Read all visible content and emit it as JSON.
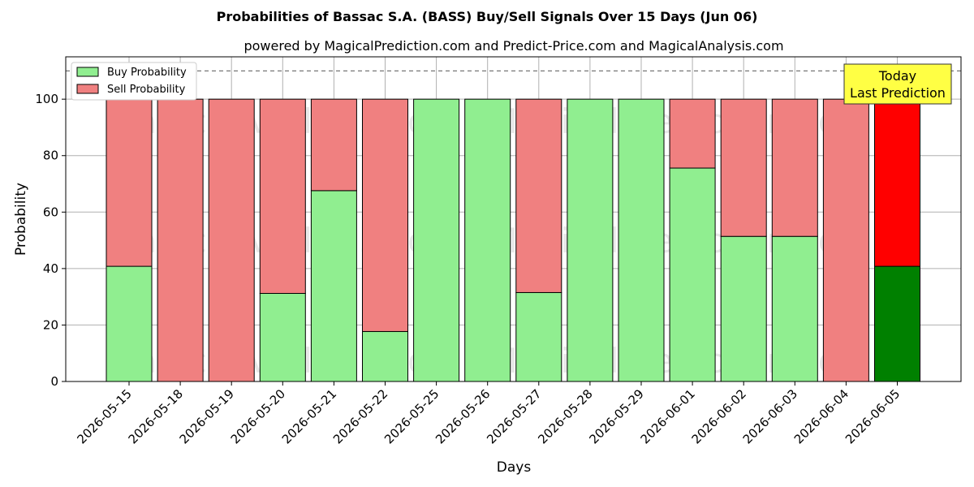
{
  "chart_data": {
    "type": "bar",
    "title": "Probabilities of Bassac S.A. (BASS) Buy/Sell Signals Over 15 Days (Jun 06)",
    "subtitle": "powered by MagicalPrediction.com and Predict-Price.com and MagicalAnalysis.com",
    "xlabel": "Days",
    "ylabel": "Probability",
    "ylim": [
      0,
      115
    ],
    "yticks": [
      0,
      20,
      40,
      60,
      80,
      100
    ],
    "categories": [
      "2026-05-15",
      "2026-05-18",
      "2026-05-19",
      "2026-05-20",
      "2026-05-21",
      "2026-05-22",
      "2026-05-25",
      "2026-05-26",
      "2026-05-27",
      "2026-05-28",
      "2026-05-29",
      "2026-06-01",
      "2026-06-02",
      "2026-06-03",
      "2026-06-04",
      "2026-06-05"
    ],
    "series": [
      {
        "name": "Buy Probability",
        "values": [
          40.8,
          0,
          0,
          31.2,
          67.6,
          17.7,
          100,
          100,
          31.5,
          100,
          100,
          75.6,
          51.4,
          51.4,
          0,
          40.8
        ]
      },
      {
        "name": "Sell Probability",
        "values": [
          59.2,
          100,
          100,
          68.8,
          32.4,
          82.3,
          0,
          0,
          68.5,
          0,
          0,
          24.4,
          48.6,
          48.6,
          100,
          59.2
        ]
      }
    ],
    "reference_line": 110,
    "stacked": true,
    "grid": true,
    "legend_position": "top-left",
    "colors": {
      "buy": "#90ee90",
      "sell": "#f08080",
      "buy_today": "#008000",
      "sell_today": "#ff0000",
      "annotation_bg": "#ffff44"
    },
    "annotation": {
      "line1": "Today",
      "line2": "Last Prediction"
    },
    "watermarks": [
      "MagicalAnalysis.com",
      "MagicalPrediction.com"
    ]
  }
}
